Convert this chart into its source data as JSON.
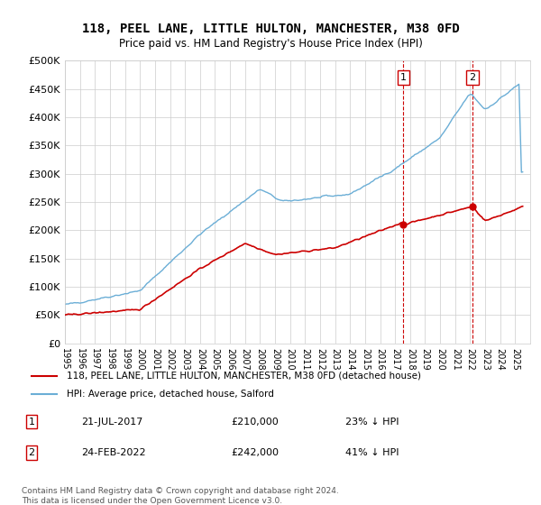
{
  "title": "118, PEEL LANE, LITTLE HULTON, MANCHESTER, M38 0FD",
  "subtitle": "Price paid vs. HM Land Registry's House Price Index (HPI)",
  "ylabel_ticks": [
    "£0",
    "£50K",
    "£100K",
    "£150K",
    "£200K",
    "£250K",
    "£300K",
    "£350K",
    "£400K",
    "£450K",
    "£500K"
  ],
  "ytick_values": [
    0,
    50000,
    100000,
    150000,
    200000,
    250000,
    300000,
    350000,
    400000,
    450000,
    500000
  ],
  "ylim": [
    0,
    500000
  ],
  "xlim_start": 1995,
  "xlim_end": 2026,
  "hpi_color": "#6baed6",
  "price_color": "#cc0000",
  "dashed_color": "#cc0000",
  "marker1_date_label": "21-JUL-2017",
  "marker1_x": 2017.55,
  "marker1_y": 210000,
  "marker1_label": "1",
  "marker1_text": "21-JUL-2017    £210,000    23% ↓ HPI",
  "marker2_date_label": "24-FEB-2022",
  "marker2_x": 2022.15,
  "marker2_y": 242000,
  "marker2_label": "2",
  "marker2_text": "24-FEB-2022    £242,000    41% ↓ HPI",
  "legend_line1": "118, PEEL LANE, LITTLE HULTON, MANCHESTER, M38 0FD (detached house)",
  "legend_line2": "HPI: Average price, detached house, Salford",
  "footer": "Contains HM Land Registry data © Crown copyright and database right 2024.\nThis data is licensed under the Open Government Licence v3.0.",
  "background_color": "#ffffff",
  "grid_color": "#cccccc"
}
